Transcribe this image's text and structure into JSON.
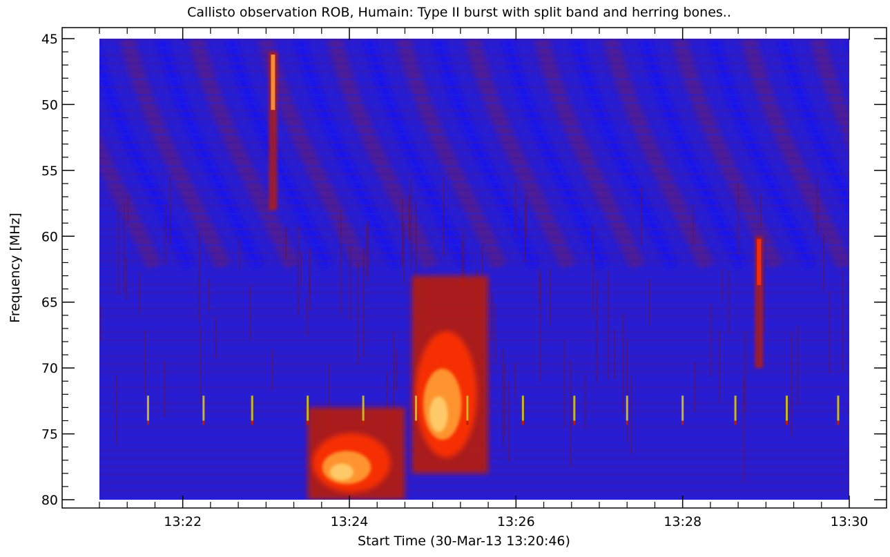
{
  "chart_data": {
    "type": "heatmap",
    "title": "Callisto observation ROB, Humain: Type II burst with split band and herring bones..",
    "xlabel": "Start Time (30-Mar-13 13:20:46)",
    "ylabel": "Frequency [MHz]",
    "x_range": [
      "13:21:00",
      "13:30:00"
    ],
    "x_axis_range": [
      "13:20:46",
      "13:30:15"
    ],
    "y_range": [
      45,
      80
    ],
    "y_inverted": true,
    "x_ticks": [
      "13:22",
      "13:24",
      "13:26",
      "13:28",
      "13:30"
    ],
    "y_ticks": [
      "45",
      "50",
      "55",
      "60",
      "65",
      "70",
      "75",
      "80"
    ],
    "colormap": [
      "#1a1aff",
      "#5a10a8",
      "#8a1030",
      "#c01a00",
      "#ff3000",
      "#ff9a30",
      "#ffd070",
      "#b8b830"
    ],
    "background_color": "#2a1dcf",
    "features": [
      {
        "name": "type-III burst",
        "time": "13:23:05",
        "freq_range": [
          46,
          58
        ],
        "intensity": 0.8
      },
      {
        "name": "type-II lower band",
        "time_range": [
          "13:23:30",
          "13:24:40"
        ],
        "freq_range": [
          73,
          80
        ],
        "intensity": 0.95
      },
      {
        "name": "type-II upper band",
        "time_range": [
          "13:24:45",
          "13:25:40"
        ],
        "freq_range": [
          63,
          78
        ],
        "intensity": 0.9
      },
      {
        "name": "narrowband spike",
        "time": "13:28:55",
        "freq_range": [
          60,
          70
        ],
        "intensity": 0.5
      }
    ],
    "interference_markers": {
      "freq": [
        72.1,
        74.0
      ],
      "color": "#c8b820",
      "times": [
        "13:21:35",
        "13:22:15",
        "13:22:50",
        "13:23:30",
        "13:24:10",
        "13:24:48",
        "13:25:25",
        "13:26:05",
        "13:26:42",
        "13:27:20",
        "13:28:00",
        "13:28:38",
        "13:29:15",
        "13:29:52"
      ]
    }
  }
}
